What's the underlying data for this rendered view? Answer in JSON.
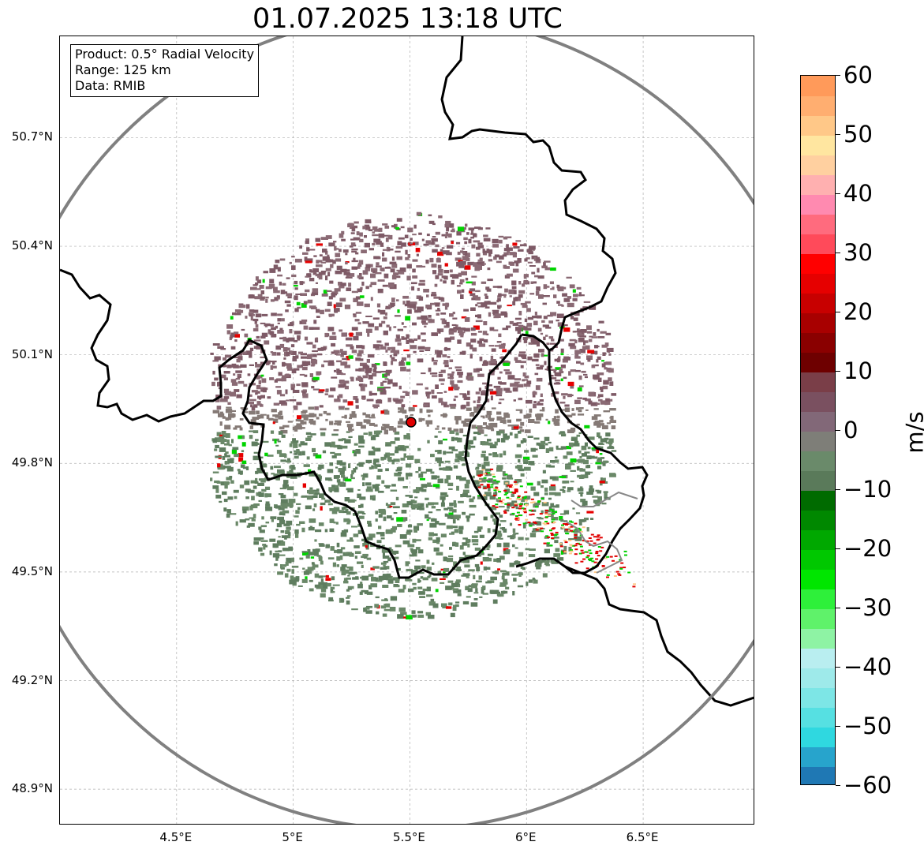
{
  "title": "01.07.2025 13:18 UTC",
  "info_box": {
    "product": "Product: 0.5° Radial Velocity",
    "range": "Range: 125 km",
    "data": "Data: RMIB"
  },
  "map": {
    "lon_range": [
      4.0,
      6.98
    ],
    "lat_range": [
      48.8,
      50.98
    ],
    "radar_site": {
      "lon": 5.505,
      "lat": 49.914
    },
    "range_km": 125,
    "gridlines": true,
    "lat_ticks": [
      "50.7°N",
      "50.4°N",
      "50.1°N",
      "49.8°N",
      "49.5°N",
      "49.2°N",
      "48.9°N"
    ],
    "lat_values": [
      50.7,
      50.4,
      50.1,
      49.8,
      49.5,
      49.2,
      48.9
    ],
    "lon_ticks": [
      "4.5°E",
      "5°E",
      "5.5°E",
      "6°E",
      "6.5°E"
    ],
    "lon_values": [
      4.5,
      5.0,
      5.5,
      6.0,
      6.5
    ]
  },
  "colorbar": {
    "label": "m/s",
    "min": -60,
    "max": 60,
    "ticks": [
      "60",
      "50",
      "40",
      "30",
      "20",
      "10",
      "0",
      "−10",
      "−20",
      "−30",
      "−40",
      "−50",
      "−60"
    ],
    "tick_values": [
      60,
      50,
      40,
      30,
      20,
      10,
      0,
      -10,
      -20,
      -30,
      -40,
      -50,
      -60
    ],
    "colors": [
      "#1f78b4",
      "#27a4cc",
      "#2fd8e0",
      "#56e0e2",
      "#7de6e6",
      "#9eeaea",
      "#b9eef0",
      "#8ef3a4",
      "#5ff26a",
      "#2ef03a",
      "#00e600",
      "#00c800",
      "#00a800",
      "#008800",
      "#006b00",
      "#5a7a5a",
      "#6a8a6a",
      "#7e7e78",
      "#826878",
      "#7a5060",
      "#7a3e48",
      "#6e0000",
      "#8a0000",
      "#a80000",
      "#c80000",
      "#e60000",
      "#ff0000",
      "#ff4a5a",
      "#ff6b7e",
      "#ff8ab0",
      "#ffb0b0",
      "#ffd0a0",
      "#ffe6a0",
      "#ffc888",
      "#ffae70",
      "#ff9a5a"
    ]
  }
}
